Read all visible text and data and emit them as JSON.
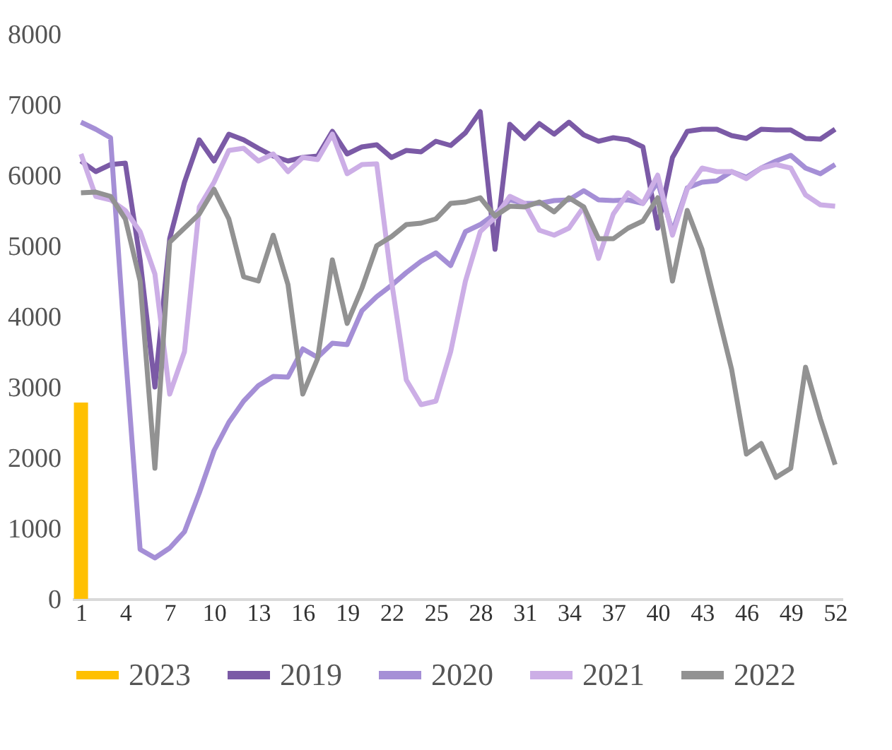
{
  "chart_data": {
    "type": "line",
    "x": [
      1,
      2,
      3,
      4,
      5,
      6,
      7,
      8,
      9,
      10,
      11,
      12,
      13,
      14,
      15,
      16,
      17,
      18,
      19,
      20,
      21,
      22,
      23,
      24,
      25,
      26,
      27,
      28,
      29,
      30,
      31,
      32,
      33,
      34,
      35,
      36,
      37,
      38,
      39,
      40,
      41,
      42,
      43,
      44,
      45,
      46,
      47,
      48,
      49,
      50,
      51,
      52
    ],
    "xlim": [
      0.4,
      52.5
    ],
    "xticks": [
      1,
      4,
      7,
      10,
      13,
      16,
      19,
      22,
      25,
      28,
      31,
      34,
      37,
      40,
      43,
      46,
      49,
      52
    ],
    "ylim": [
      0,
      8000
    ],
    "yticks": [
      0,
      1000,
      2000,
      3000,
      4000,
      5000,
      6000,
      7000,
      8000
    ],
    "grid": false,
    "legend": "bottom",
    "series": [
      {
        "name": "2023",
        "type": "bar",
        "color": "#ffc000",
        "x": [
          1
        ],
        "values": [
          2780
        ]
      },
      {
        "name": "2019",
        "color": "#7b5aa6",
        "values": [
          6200,
          6050,
          6150,
          6170,
          4800,
          3000,
          5100,
          5900,
          6500,
          6200,
          6580,
          6500,
          6380,
          6270,
          6200,
          6250,
          6270,
          6620,
          6300,
          6400,
          6430,
          6250,
          6350,
          6330,
          6480,
          6420,
          6600,
          6900,
          4950,
          6720,
          6520,
          6730,
          6580,
          6750,
          6570,
          6480,
          6530,
          6500,
          6400,
          5250,
          6250,
          6620,
          6650,
          6650,
          6560,
          6520,
          6650,
          6640,
          6640,
          6520,
          6510,
          6650
        ]
      },
      {
        "name": "2020",
        "color": "#a58fd6",
        "values": [
          6750,
          6650,
          6530,
          3500,
          700,
          580,
          720,
          950,
          1500,
          2100,
          2500,
          2800,
          3020,
          3150,
          3140,
          3540,
          3420,
          3620,
          3600,
          4080,
          4280,
          4440,
          4620,
          4780,
          4900,
          4720,
          5200,
          5300,
          5450,
          5650,
          5600,
          5600,
          5640,
          5650,
          5780,
          5650,
          5640,
          5650,
          5600,
          5900,
          5200,
          5820,
          5900,
          5920,
          6050,
          5970,
          6100,
          6200,
          6280,
          6100,
          6020,
          6150
        ]
      },
      {
        "name": "2021",
        "color": "#ccaee6",
        "values": [
          6300,
          5700,
          5650,
          5500,
          5200,
          4600,
          2900,
          3500,
          5550,
          5900,
          6350,
          6380,
          6200,
          6300,
          6050,
          6250,
          6220,
          6580,
          6020,
          6150,
          6160,
          4500,
          3100,
          2750,
          2800,
          3500,
          4500,
          5200,
          5400,
          5700,
          5600,
          5220,
          5150,
          5250,
          5550,
          4820,
          5450,
          5750,
          5600,
          6000,
          5150,
          5800,
          6100,
          6050,
          6050,
          5950,
          6100,
          6150,
          6100,
          5720,
          5580,
          5560
        ]
      },
      {
        "name": "2022",
        "color": "#929292",
        "values": [
          5750,
          5760,
          5700,
          5380,
          4500,
          1850,
          5050,
          5250,
          5450,
          5800,
          5380,
          4560,
          4500,
          5150,
          4450,
          2900,
          3400,
          4800,
          3900,
          4400,
          5000,
          5130,
          5300,
          5320,
          5380,
          5600,
          5620,
          5680,
          5420,
          5560,
          5550,
          5620,
          5480,
          5680,
          5550,
          5100,
          5100,
          5250,
          5350,
          5680,
          4500,
          5500,
          4950,
          4100,
          3250,
          2050,
          2200,
          1720,
          1850,
          3280,
          2550,
          1900
        ]
      }
    ]
  }
}
